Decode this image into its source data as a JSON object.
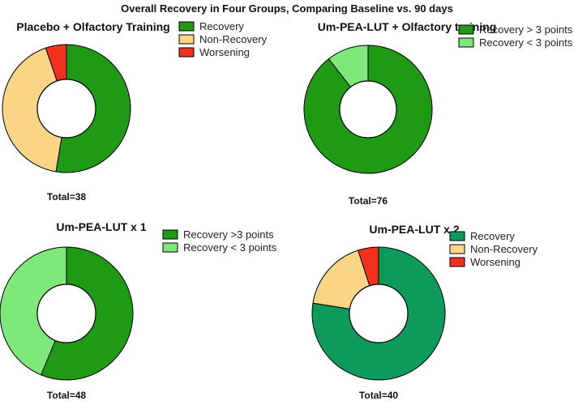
{
  "figure": {
    "title": "Overall Recovery in Four Groups, Comparing Baseline vs. 90 days"
  },
  "colors": {
    "dark_green": "#1f9a14",
    "light_green": "#7fe87a",
    "tan": "#fbd586",
    "red": "#f1311c",
    "teal_green": "#0e9a5a",
    "stroke": "#000000"
  },
  "chart_data": [
    {
      "type": "pie",
      "title": "Placebo + Olfactory Training",
      "total_label": "Total=38",
      "categories": [
        "Recovery",
        "Non-Recovery",
        "Worsening"
      ],
      "values": [
        20,
        16,
        2
      ],
      "colors": [
        "#1f9a14",
        "#fbd586",
        "#f1311c"
      ],
      "donut": true,
      "legend": "right"
    },
    {
      "type": "pie",
      "title": "Um-PEA-LUT + Olfactory training",
      "total_label": "Total=76",
      "categories": [
        "Recovery > 3 points",
        "Recovery < 3 points"
      ],
      "values": [
        68,
        8
      ],
      "colors": [
        "#1f9a14",
        "#7fe87a"
      ],
      "donut": true,
      "legend": "right"
    },
    {
      "type": "pie",
      "title": "Um-PEA-LUT x 1",
      "total_label": "Total=48",
      "categories": [
        "Recovery >3 points",
        "Recovery < 3 points"
      ],
      "values": [
        27,
        21
      ],
      "colors": [
        "#1f9a14",
        "#7fe87a"
      ],
      "donut": true,
      "legend": "right"
    },
    {
      "type": "pie",
      "title": "Um-PEA-LUT x 2",
      "total_label": "Total=40",
      "categories": [
        "Recovery",
        "Non-Recovery",
        "Worsening"
      ],
      "values": [
        31,
        7,
        2
      ],
      "colors": [
        "#0e9a5a",
        "#fbd586",
        "#f1311c"
      ],
      "donut": true,
      "legend": "right"
    }
  ]
}
